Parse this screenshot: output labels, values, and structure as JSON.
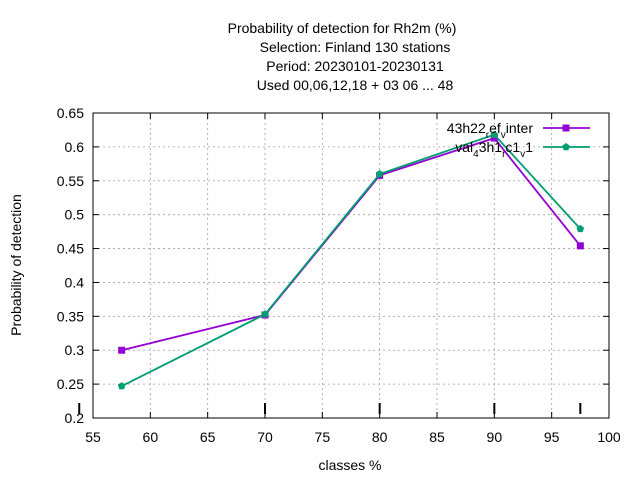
{
  "chart_data": {
    "type": "line",
    "title_lines": [
      "Probability of detection  for Rh2m (%)",
      "Selection: Finland    130 stations",
      "Period: 20230101-20230131",
      "Used  00,06,12,18  + 03 06 ... 48"
    ],
    "xlabel": "classes %",
    "ylabel": "Probability of detection",
    "xlim": [
      55,
      100
    ],
    "ylim": [
      0.2,
      0.65
    ],
    "xticks": [
      55,
      60,
      65,
      70,
      75,
      80,
      85,
      90,
      95,
      100
    ],
    "yticks": [
      0.2,
      0.25,
      0.3,
      0.35,
      0.4,
      0.45,
      0.5,
      0.55,
      0.6,
      0.65
    ],
    "grid": true,
    "legend_position": "top-right",
    "series": [
      {
        "name_parts": [
          {
            "text": "43h22",
            "sub": false
          },
          {
            "text": "r",
            "sub": true
          },
          {
            "text": "ef",
            "sub": false
          },
          {
            "text": "v",
            "sub": true
          },
          {
            "text": "inter",
            "sub": false
          }
        ],
        "color": "#9400d3",
        "x": [
          57.5,
          70,
          80,
          90,
          97.5
        ],
        "y": [
          0.3,
          0.352,
          0.558,
          0.613,
          0.454
        ]
      },
      {
        "name_parts": [
          {
            "text": "val",
            "sub": false
          },
          {
            "text": "4",
            "sub": true
          },
          {
            "text": "3h1",
            "sub": false
          },
          {
            "text": "r",
            "sub": true
          },
          {
            "text": "c1",
            "sub": false
          },
          {
            "text": "v",
            "sub": true
          },
          {
            "text": "1",
            "sub": false
          }
        ],
        "color": "#009e73",
        "x": [
          57.5,
          70,
          80,
          90,
          97.5
        ],
        "y": [
          0.247,
          0.353,
          0.56,
          0.618,
          0.479
        ]
      }
    ],
    "extra_ticks_x": [
      57.5,
      70,
      80,
      90,
      97.5
    ]
  }
}
